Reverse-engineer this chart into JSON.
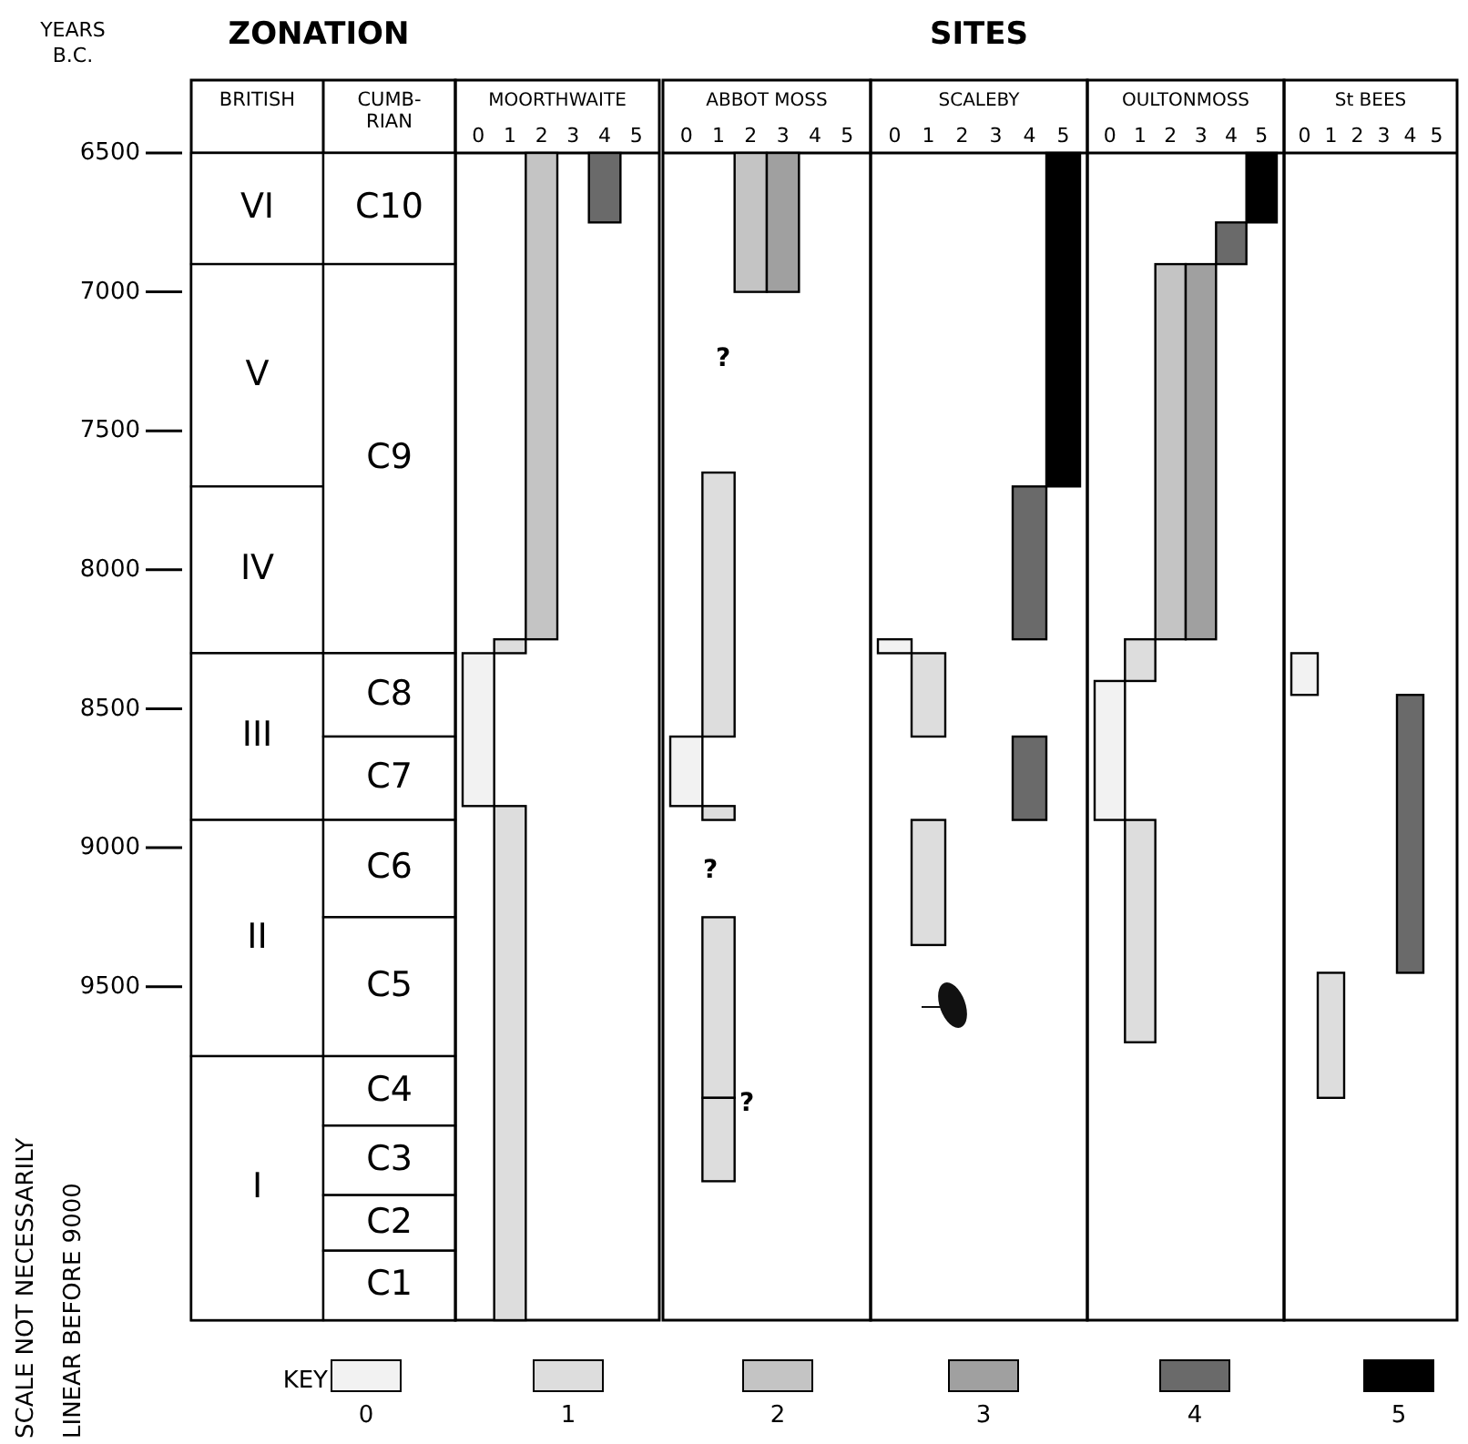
{
  "chart_data": [
    {
      "type": "bar",
      "title": "ZONATION",
      "ylabel": "YEARS B.C.",
      "categories": [
        "BRITISH",
        "CUMB-RIAN"
      ],
      "colors": [
        "#ffffff",
        "#ffffff"
      ],
      "ylim": [
        10700,
        6500
      ],
      "yticks": [
        6500,
        7000,
        7500,
        8000,
        8500,
        9000,
        9500
      ],
      "annotations": [
        "SCALE NOT NECESSARILY LINEAR BEFORE 9000"
      ],
      "series": [
        {
          "values": [
            400,
            null
          ],
          "base": [
            6500,
            null
          ],
          "value_labels": [
            "VI",
            null
          ]
        },
        {
          "values": [
            800,
            null
          ],
          "base": [
            6900,
            null
          ],
          "value_labels": [
            "V",
            null
          ]
        },
        {
          "values": [
            600,
            null
          ],
          "base": [
            7700,
            null
          ],
          "value_labels": [
            "IV",
            null
          ]
        },
        {
          "values": [
            600,
            null
          ],
          "base": [
            8300,
            null
          ],
          "value_labels": [
            "III",
            null
          ]
        },
        {
          "values": [
            850,
            null
          ],
          "base": [
            8900,
            null
          ],
          "value_labels": [
            "II",
            null
          ]
        },
        {
          "values": [
            950,
            null
          ],
          "base": [
            9750,
            null
          ],
          "value_labels": [
            "I",
            null
          ]
        },
        {
          "values": [
            null,
            400
          ],
          "base": [
            null,
            6500
          ],
          "value_labels": [
            null,
            "C10"
          ]
        },
        {
          "values": [
            null,
            1400
          ],
          "base": [
            null,
            6900
          ],
          "value_labels": [
            null,
            "C9"
          ]
        },
        {
          "values": [
            null,
            300
          ],
          "base": [
            null,
            8300
          ],
          "value_labels": [
            null,
            "C8"
          ]
        },
        {
          "values": [
            null,
            300
          ],
          "base": [
            null,
            8600
          ],
          "value_labels": [
            null,
            "C7"
          ]
        },
        {
          "values": [
            null,
            350
          ],
          "base": [
            null,
            8900
          ],
          "value_labels": [
            null,
            "C6"
          ]
        },
        {
          "values": [
            null,
            500
          ],
          "base": [
            null,
            9250
          ],
          "value_labels": [
            null,
            "C5"
          ]
        },
        {
          "values": [
            null,
            250
          ],
          "base": [
            null,
            9750
          ],
          "value_labels": [
            null,
            "C4"
          ]
        },
        {
          "values": [
            null,
            250
          ],
          "base": [
            null,
            10000
          ],
          "value_labels": [
            null,
            "C3"
          ]
        },
        {
          "values": [
            null,
            200
          ],
          "base": [
            null,
            10250
          ],
          "value_labels": [
            null,
            "C2"
          ]
        },
        {
          "values": [
            null,
            250
          ],
          "base": [
            null,
            10450
          ],
          "value_labels": [
            null,
            "C1"
          ]
        }
      ]
    },
    {
      "type": "bar",
      "title": "MOORTHWAITE",
      "categories": [
        "0",
        "1",
        "2",
        "3",
        "4",
        "5"
      ],
      "ylim": [
        10700,
        6500
      ],
      "tick_labels": "x",
      "series": [
        {
          "color": "#f2f2f2",
          "x": [
            "0"
          ],
          "values": [
            550
          ],
          "base": [
            8300
          ]
        },
        {
          "color": "#dddddd",
          "x": [
            "1",
            "1"
          ],
          "values": [
            50,
            1850
          ],
          "base": [
            8250,
            8850
          ]
        },
        {
          "color": "#c4c4c4",
          "x": [
            "2"
          ],
          "values": [
            1750
          ],
          "base": [
            6500
          ]
        },
        {
          "color": "#6a6a6a",
          "x": [
            "4"
          ],
          "values": [
            250
          ],
          "base": [
            6500
          ]
        }
      ]
    },
    {
      "type": "bar",
      "title": "ABBOT MOSS",
      "categories": [
        "0",
        "1",
        "2",
        "3",
        "4",
        "5"
      ],
      "ylim": [
        10700,
        6500
      ],
      "tick_labels": "x",
      "annotations": [
        "?",
        "?",
        "?"
      ],
      "series": [
        {
          "color": "#f2f2f2",
          "x": [
            "0"
          ],
          "values": [
            250
          ],
          "base": [
            8600
          ]
        },
        {
          "color": "#dddddd",
          "x": [
            "1",
            "1",
            "1",
            "1"
          ],
          "values": [
            950,
            50,
            650,
            300
          ],
          "base": [
            7650,
            8850,
            9250,
            9900
          ]
        },
        {
          "color": "#c4c4c4",
          "x": [
            "2"
          ],
          "values": [
            500
          ],
          "base": [
            6500
          ]
        },
        {
          "color": "#a0a0a0",
          "x": [
            "3"
          ],
          "values": [
            500
          ],
          "base": [
            6500
          ]
        }
      ]
    },
    {
      "type": "bar",
      "title": "SCALEBY",
      "categories": [
        "0",
        "1",
        "2",
        "3",
        "4",
        "5"
      ],
      "ylim": [
        10700,
        6500
      ],
      "tick_labels": "x",
      "annotations": [
        "SITES"
      ],
      "series": [
        {
          "color": "#f2f2f2",
          "x": [
            "0"
          ],
          "values": [
            50
          ],
          "base": [
            8250
          ]
        },
        {
          "color": "#dddddd",
          "x": [
            "1",
            "1"
          ],
          "values": [
            300,
            450
          ],
          "base": [
            8300,
            8900
          ]
        },
        {
          "color": "#6a6a6a",
          "x": [
            "4",
            "4"
          ],
          "values": [
            550,
            300
          ],
          "base": [
            7700,
            8600
          ]
        },
        {
          "color": "#000000",
          "x": [
            "5"
          ],
          "values": [
            1200
          ],
          "base": [
            6500
          ]
        }
      ]
    },
    {
      "type": "bar",
      "title": "OULTONMOSS",
      "categories": [
        "0",
        "1",
        "2",
        "3",
        "4",
        "5"
      ],
      "ylim": [
        10700,
        6500
      ],
      "tick_labels": "x",
      "legend": "bottom",
      "legend_title": "KEY",
      "series": [
        {
          "name": "0",
          "color": "#f2f2f2",
          "x": [
            "0"
          ],
          "values": [
            500
          ],
          "base": [
            8400
          ]
        },
        {
          "name": "1",
          "color": "#dddddd",
          "x": [
            "1",
            "1"
          ],
          "values": [
            150,
            800
          ],
          "base": [
            8250,
            8900
          ]
        },
        {
          "name": "2",
          "color": "#c4c4c4",
          "x": [
            "2"
          ],
          "values": [
            1350
          ],
          "base": [
            6900
          ]
        },
        {
          "name": "3",
          "color": "#a0a0a0",
          "x": [
            "3"
          ],
          "values": [
            1350
          ],
          "base": [
            6900
          ]
        },
        {
          "name": "4",
          "color": "#6a6a6a",
          "x": [
            "4"
          ],
          "values": [
            150
          ],
          "base": [
            6750
          ]
        },
        {
          "name": "5",
          "color": "#000000",
          "x": [
            "5"
          ],
          "values": [
            250
          ],
          "base": [
            6500
          ]
        }
      ]
    },
    {
      "type": "bar",
      "title": "St BEES",
      "categories": [
        "0",
        "1",
        "2",
        "3",
        "4",
        "5"
      ],
      "ylim": [
        10700,
        6500
      ],
      "tick_labels": "x",
      "series": [
        {
          "color": "#f2f2f2",
          "x": [
            "0"
          ],
          "values": [
            150
          ],
          "base": [
            8300
          ]
        },
        {
          "color": "#dddddd",
          "x": [
            "1"
          ],
          "values": [
            450
          ],
          "base": [
            9450
          ]
        },
        {
          "color": "#6a6a6a",
          "x": [
            "4"
          ],
          "values": [
            1000
          ],
          "base": [
            8450
          ]
        }
      ]
    }
  ]
}
